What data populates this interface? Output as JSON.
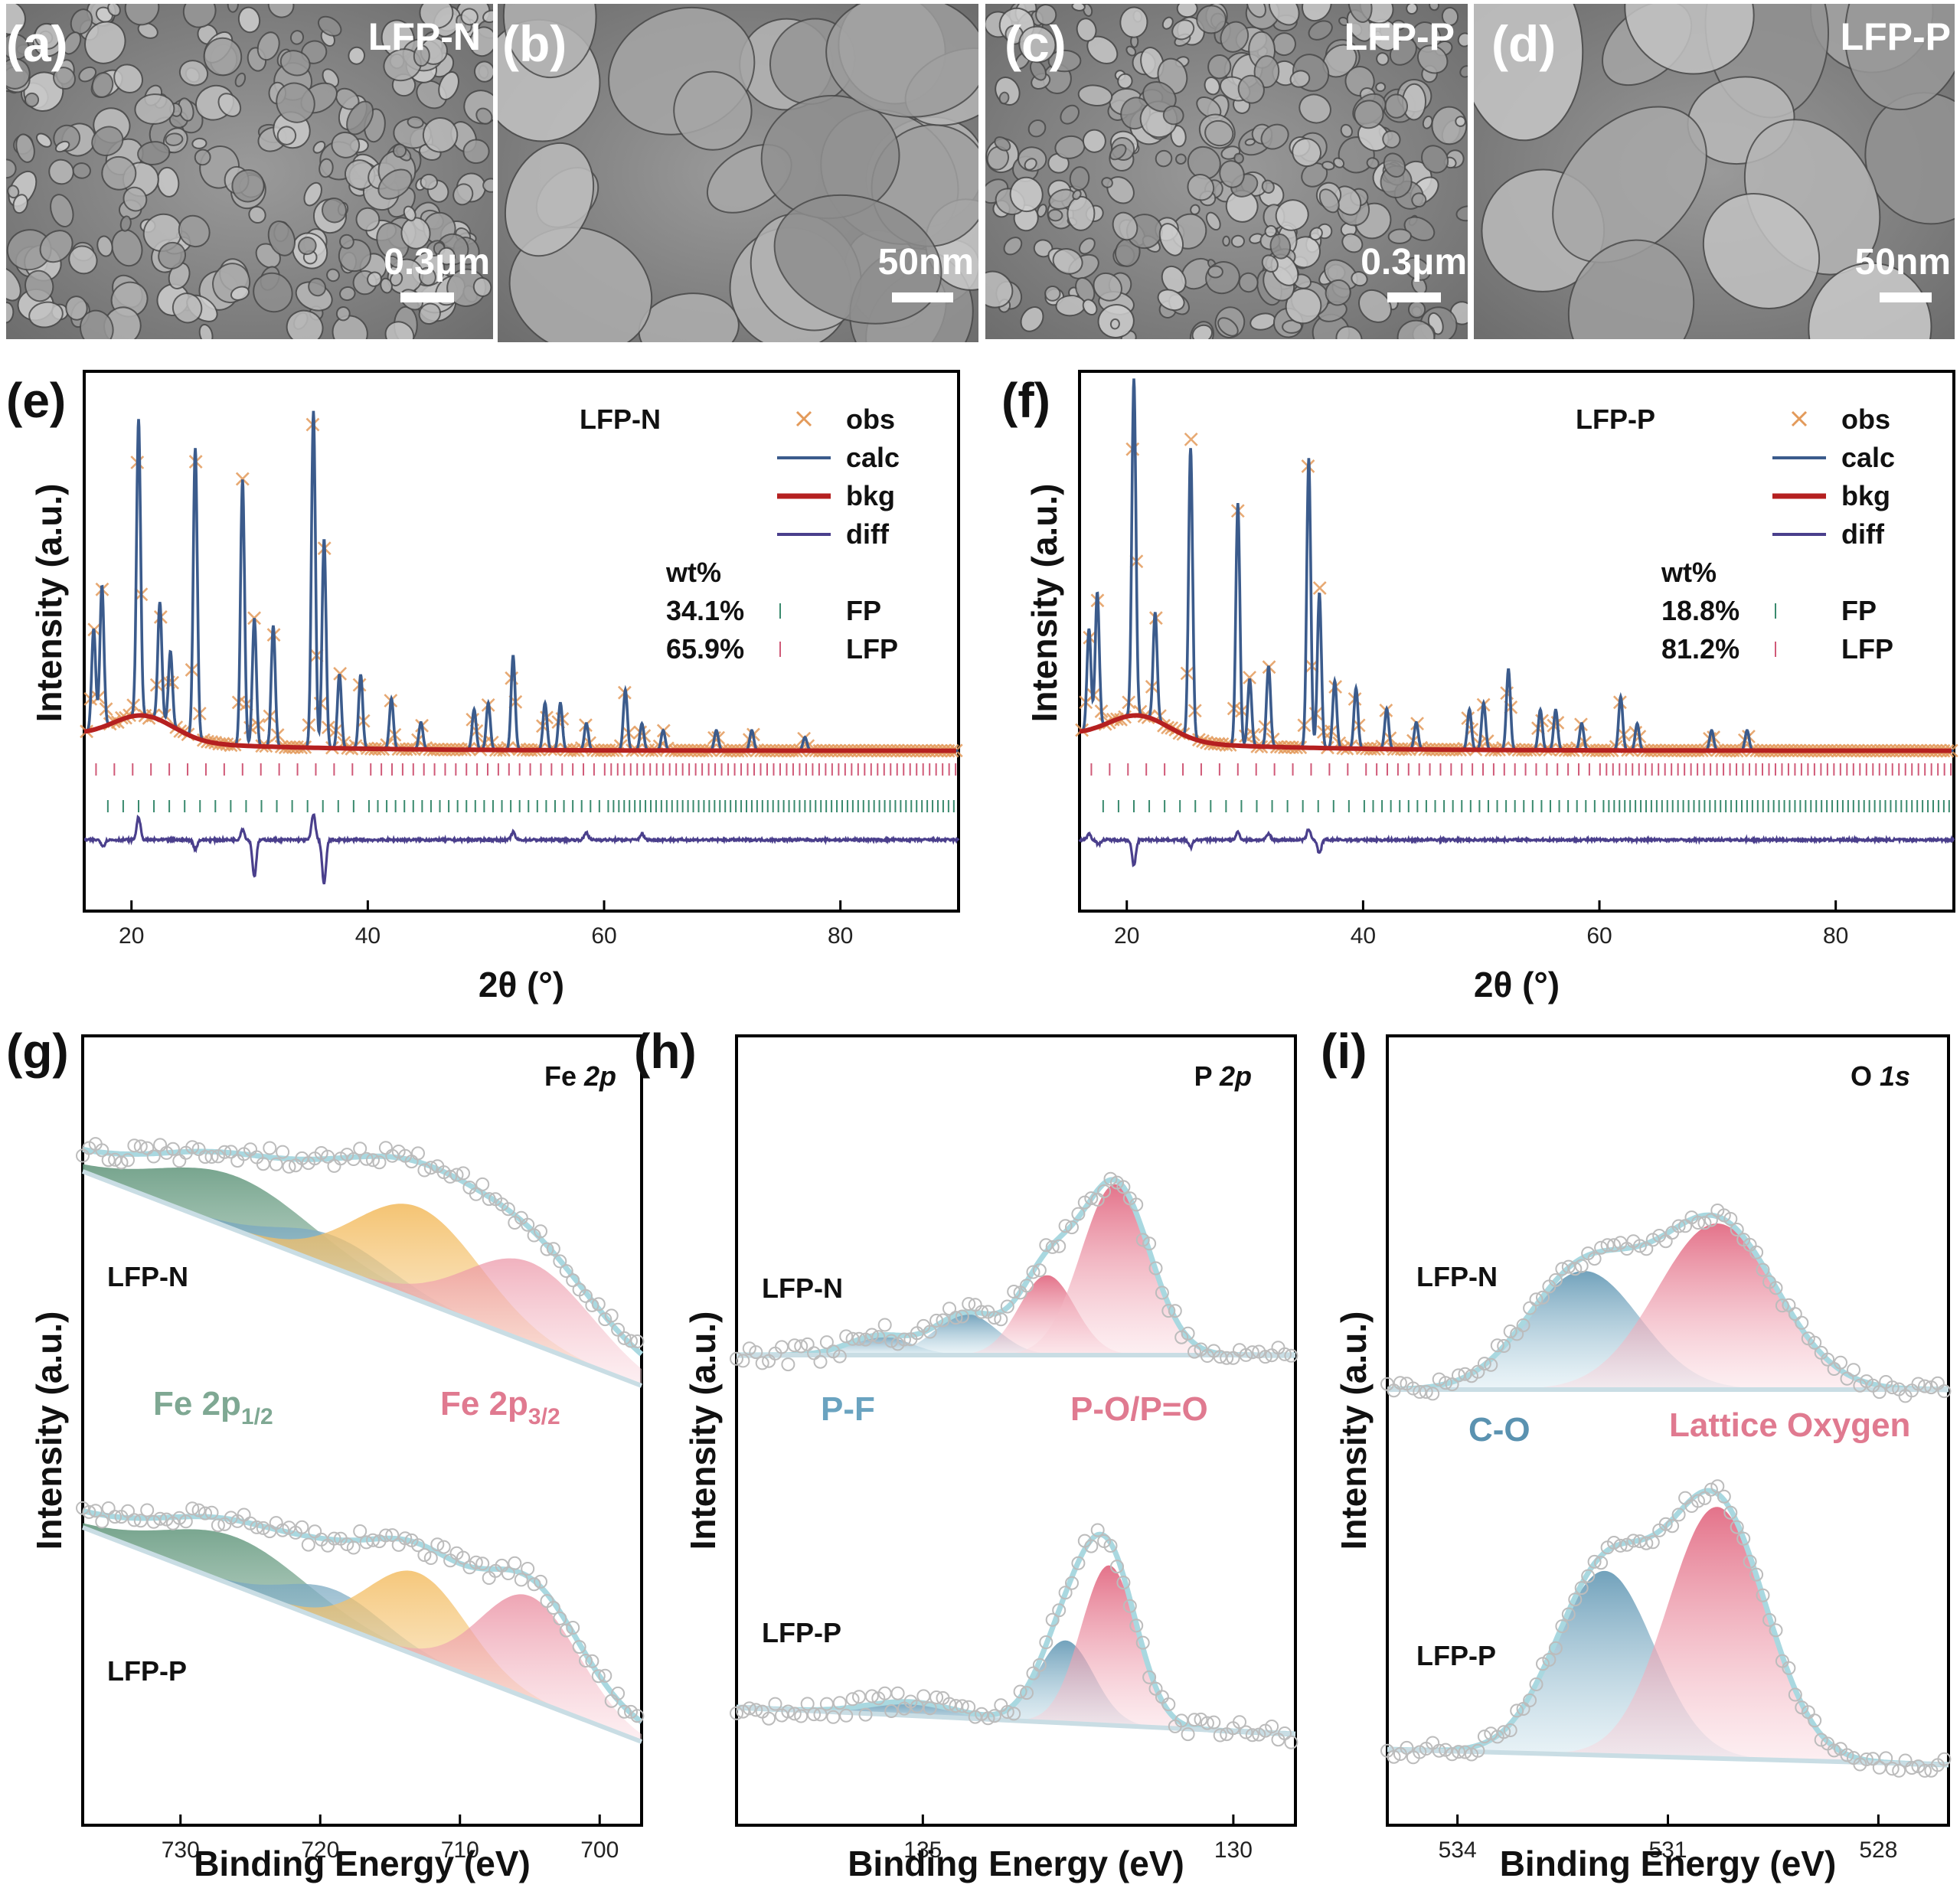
{
  "colors": {
    "obs": "#e39a5a",
    "calc": "#3b5b8c",
    "bkg": "#b52020",
    "diff": "#4a3f8c",
    "fp": "#3a8a6e",
    "lfp": "#d05a78",
    "envelope": "#a9d8e0",
    "fe_green": "#6a9a80",
    "fe_blue": "#6aa3c0",
    "fe_orange": "#f0b040",
    "fe_pink": "#e06a80",
    "pf_blue": "#5a92b0",
    "po_pink": "#e05a78"
  },
  "sem_panels": [
    {
      "letter": "(a)",
      "sample": "LFP-N",
      "scale": "0.3μm"
    },
    {
      "letter": "(b)",
      "sample": "",
      "scale": "50nm"
    },
    {
      "letter": "(c)",
      "sample": "LFP-P",
      "scale": "0.3μm"
    },
    {
      "letter": "(d)",
      "sample": "LFP-P",
      "scale": "50nm"
    }
  ],
  "chart_data": [
    {
      "type": "line",
      "panel": "(e)",
      "sample": "LFP-N",
      "xlabel": "2θ (°)",
      "ylabel": "Intensity (a.u.)",
      "xlim": [
        16,
        90
      ],
      "xticks": [
        20,
        40,
        60,
        80
      ],
      "legend": [
        "obs",
        "calc",
        "bkg",
        "diff"
      ],
      "wt_header": "wt%",
      "phases": [
        {
          "name": "FP",
          "wt": "34.1%"
        },
        {
          "name": "LFP",
          "wt": "65.9%"
        }
      ],
      "peaks": [
        [
          16.8,
          30
        ],
        [
          17.5,
          42
        ],
        [
          20.6,
          88
        ],
        [
          22.4,
          35
        ],
        [
          23.3,
          22
        ],
        [
          25.4,
          86
        ],
        [
          29.4,
          79
        ],
        [
          30.4,
          38
        ],
        [
          32.0,
          36
        ],
        [
          35.4,
          100
        ],
        [
          36.3,
          62
        ],
        [
          37.6,
          22
        ],
        [
          39.4,
          22
        ],
        [
          42.0,
          15
        ],
        [
          44.5,
          8
        ],
        [
          49.0,
          12
        ],
        [
          50.2,
          14
        ],
        [
          52.3,
          28
        ],
        [
          55.0,
          14
        ],
        [
          56.3,
          14
        ],
        [
          58.5,
          8
        ],
        [
          61.8,
          18
        ],
        [
          63.2,
          8
        ],
        [
          65.0,
          6
        ],
        [
          69.5,
          6
        ],
        [
          72.5,
          6
        ],
        [
          77.0,
          4
        ]
      ],
      "diff_peaks": [
        [
          17.6,
          -8
        ],
        [
          20.6,
          30
        ],
        [
          25.4,
          -12
        ],
        [
          29.4,
          14
        ],
        [
          30.4,
          -48
        ],
        [
          35.4,
          34
        ],
        [
          36.3,
          -58
        ],
        [
          52.3,
          10
        ],
        [
          58.5,
          10
        ],
        [
          63.2,
          8
        ]
      ]
    },
    {
      "type": "line",
      "panel": "(f)",
      "sample": "LFP-P",
      "xlabel": "2θ (°)",
      "ylabel": "Intensity (a.u.)",
      "xlim": [
        16,
        90
      ],
      "xticks": [
        20,
        40,
        60,
        80
      ],
      "legend": [
        "obs",
        "calc",
        "bkg",
        "diff"
      ],
      "wt_header": "wt%",
      "phases": [
        {
          "name": "FP",
          "wt": "18.8%"
        },
        {
          "name": "LFP",
          "wt": "81.2%"
        }
      ],
      "peaks": [
        [
          16.8,
          30
        ],
        [
          17.5,
          40
        ],
        [
          20.6,
          100
        ],
        [
          22.4,
          32
        ],
        [
          25.4,
          86
        ],
        [
          29.4,
          72
        ],
        [
          30.4,
          20
        ],
        [
          32.0,
          24
        ],
        [
          35.4,
          86
        ],
        [
          36.3,
          46
        ],
        [
          37.6,
          20
        ],
        [
          39.4,
          18
        ],
        [
          42.0,
          12
        ],
        [
          44.5,
          8
        ],
        [
          49.0,
          12
        ],
        [
          50.2,
          14
        ],
        [
          52.3,
          24
        ],
        [
          55.0,
          12
        ],
        [
          56.3,
          12
        ],
        [
          58.5,
          8
        ],
        [
          61.8,
          16
        ],
        [
          63.2,
          8
        ],
        [
          69.5,
          6
        ],
        [
          72.5,
          6
        ]
      ],
      "diff_peaks": [
        [
          16.8,
          8
        ],
        [
          17.6,
          -6
        ],
        [
          20.6,
          -34
        ],
        [
          25.4,
          -10
        ],
        [
          29.4,
          10
        ],
        [
          32.0,
          8
        ],
        [
          35.4,
          14
        ],
        [
          36.3,
          -18
        ]
      ]
    },
    {
      "type": "area",
      "panel": "(g)",
      "element": "Fe",
      "orbital": "2p",
      "xlabel": "Binding Energy (eV)",
      "ylabel": "Intensity (a.u.)",
      "xlim": [
        737,
        697
      ],
      "xticks": [
        730,
        720,
        710,
        700
      ],
      "samples": [
        "LFP-N",
        "LFP-P"
      ],
      "labels": [
        {
          "main": "Fe 2p",
          "sub": "1/2"
        },
        {
          "main": "Fe 2p",
          "sub": "3/2"
        }
      ],
      "components_n": [
        [
          726,
          5.5,
          0.22
        ],
        [
          719,
          4.0,
          0.13
        ],
        [
          713,
          4.5,
          0.38
        ],
        [
          705,
          4.5,
          0.33
        ]
      ],
      "components_p": [
        [
          726,
          5.0,
          0.2
        ],
        [
          719,
          3.5,
          0.14
        ],
        [
          713,
          3.5,
          0.34
        ],
        [
          705,
          3.5,
          0.42
        ]
      ]
    },
    {
      "type": "area",
      "panel": "(h)",
      "element": "P",
      "orbital": "2p",
      "xlabel": "Binding Energy (eV)",
      "ylabel": "Intensity (a.u.)",
      "xlim": [
        138.0,
        129.0
      ],
      "xticks": [
        135,
        130
      ],
      "samples": [
        "LFP-N",
        "LFP-P"
      ],
      "labels": [
        "P-F",
        "P-O/P=O"
      ],
      "components_n": [
        [
          135.7,
          0.5,
          0.07
        ],
        [
          134.3,
          0.5,
          0.15
        ],
        [
          133.0,
          0.45,
          0.29
        ],
        [
          131.9,
          0.55,
          0.62
        ]
      ],
      "components_p": [
        [
          135.2,
          0.7,
          0.05
        ],
        [
          132.7,
          0.45,
          0.3
        ],
        [
          132.0,
          0.45,
          0.58
        ]
      ]
    },
    {
      "type": "area",
      "panel": "(i)",
      "element": "O",
      "orbital": "1s",
      "xlabel": "Binding Energy (eV)",
      "ylabel": "Intensity (a.u.)",
      "xlim": [
        535.0,
        527.0
      ],
      "xticks": [
        534,
        531,
        528
      ],
      "samples": [
        "LFP-N",
        "LFP-P"
      ],
      "labels": [
        "C-O",
        "Lattice Oxygen"
      ],
      "components_n": [
        [
          532.2,
          0.8,
          0.5
        ],
        [
          530.3,
          0.85,
          0.7
        ]
      ],
      "components_p": [
        [
          531.9,
          0.7,
          0.66
        ],
        [
          530.3,
          0.7,
          0.9
        ]
      ]
    }
  ]
}
